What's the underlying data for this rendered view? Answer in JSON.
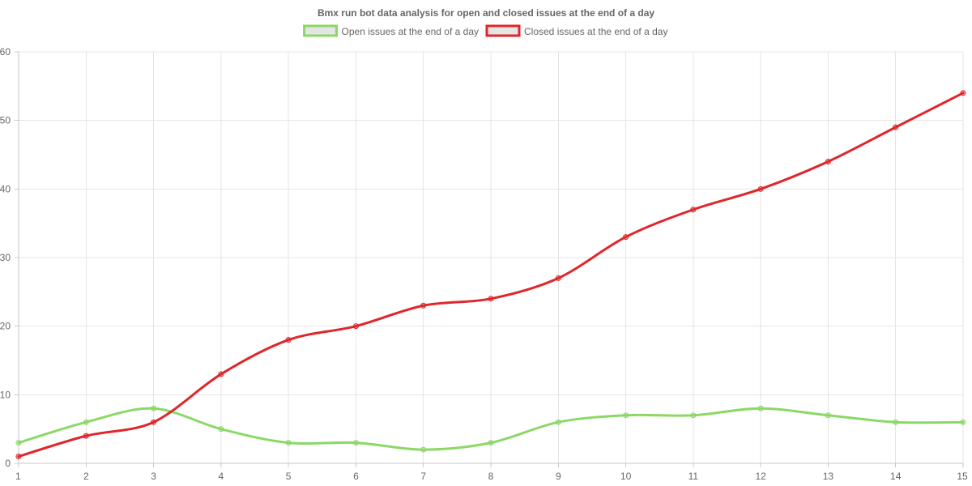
{
  "chart_data": {
    "type": "line",
    "title": "Bmx run bot data analysis for open and closed issues at the end of a day",
    "xlabel": "",
    "ylabel": "",
    "x": [
      1,
      2,
      3,
      4,
      5,
      6,
      7,
      8,
      9,
      10,
      11,
      12,
      13,
      14,
      15
    ],
    "ylim": [
      0,
      60
    ],
    "yticks": [
      0,
      10,
      20,
      30,
      40,
      50,
      60
    ],
    "grid": true,
    "legend_position": "top",
    "series": [
      {
        "name": "Open issues at the end of a day",
        "color": "#8bd866",
        "values": [
          3,
          6,
          8,
          5,
          3,
          3,
          2,
          3,
          6,
          7,
          7,
          8,
          7,
          6,
          6
        ]
      },
      {
        "name": "Closed issues at the end of a day",
        "color": "#e0262b",
        "values": [
          1,
          4,
          6,
          13,
          18,
          20,
          23,
          24,
          27,
          33,
          37,
          40,
          44,
          49,
          54
        ]
      }
    ]
  }
}
